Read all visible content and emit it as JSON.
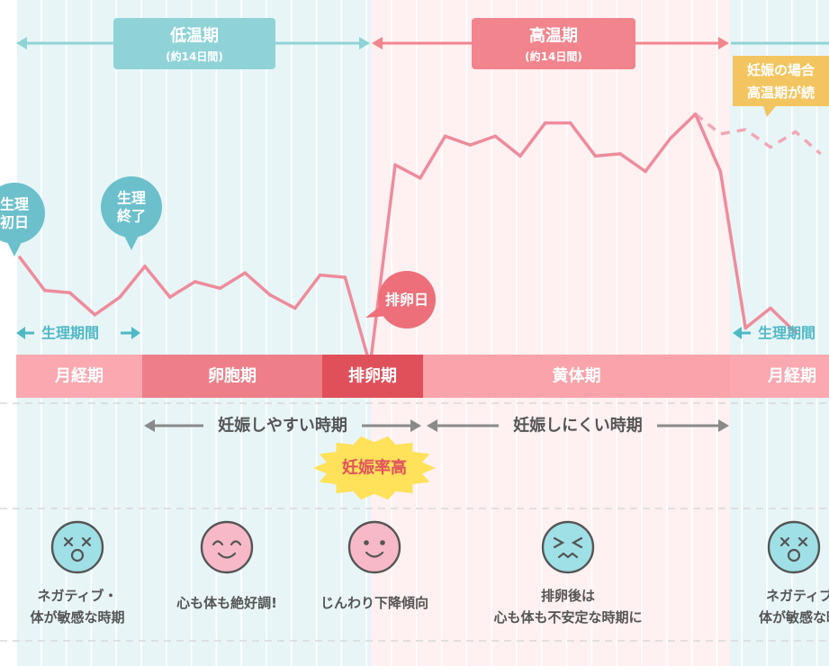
{
  "colors": {
    "low_bg": "#e7f5f7",
    "high_bg": "#fff0f1",
    "stripe": "#ffffff",
    "teal": "#8fd3d7",
    "teal_dark": "#5fb9c3",
    "teal_label": "#4fb8c5",
    "pink": "#f2848e",
    "line": "#ee8c9c",
    "line_cont": "#f0a8b5",
    "gray_arrow": "#8a8a8a",
    "text_dark": "#555555",
    "phase_menstrual": "#fba8b0",
    "phase_follicular": "#ee7f88",
    "phase_ovulation": "#e0505a",
    "phase_luteal": "#fba3ab",
    "callout_ovulation": "#ec6f79",
    "callout_teal": "#6cc0cc",
    "callout_yellow": "#f3c560",
    "burst": "#ffe15a",
    "burst_text": "#e2545d",
    "face_teal": "#9fe0e6",
    "face_pink": "#f7b9c8"
  },
  "periods": {
    "low_label": "低温期",
    "low_sub": "(約14日間)",
    "high_label": "高温期",
    "high_sub": "(約14日間)",
    "pregnancy_note_line1": "妊娠の場合",
    "pregnancy_note_line2": "高温期が続"
  },
  "markers": {
    "menses_start_line1": "生理",
    "menses_start_line2": "初日",
    "menses_end_line1": "生理",
    "menses_end_line2": "終了",
    "ovulation_day": "排卵日",
    "menstrual_period_left": "生理期間",
    "menstrual_period_right": "生理期間"
  },
  "phases": [
    {
      "label": "月経期",
      "key": "menstrual"
    },
    {
      "label": "卵胞期",
      "key": "follicular"
    },
    {
      "label": "排卵期",
      "key": "ovulation"
    },
    {
      "label": "黄体期",
      "key": "luteal"
    },
    {
      "label": "月経期",
      "key": "menstrual"
    }
  ],
  "fertility": {
    "easy": "妊娠しやすい時期",
    "hard": "妊娠しにくい時期",
    "burst": "妊娠率高"
  },
  "moods": [
    {
      "icon": "dizzy-face-icon",
      "line1": "ネガティブ・",
      "line2": "体が敏感な時期"
    },
    {
      "icon": "happy-face-icon",
      "line1": "心も体も絶好調!",
      "line2": ""
    },
    {
      "icon": "smile-face-icon",
      "line1": "じんわり下降傾向",
      "line2": ""
    },
    {
      "icon": "anxious-face-icon",
      "line1": "排卵後は",
      "line2": "心も体も不安定な時期に"
    },
    {
      "icon": "dizzy-face-icon",
      "line1": "ネガティブ",
      "line2": "体が敏感な時"
    }
  ],
  "chart_data": {
    "type": "line",
    "series": [
      {
        "style": "solid",
        "x": [
          1,
          2,
          3,
          4,
          5,
          6,
          7,
          8,
          9,
          10,
          11,
          12,
          13,
          14,
          15,
          16,
          17,
          18,
          19,
          20,
          21,
          22,
          23,
          24,
          25,
          26,
          27,
          28,
          29,
          30,
          31,
          32
        ],
        "values": [
          31,
          16,
          15,
          5,
          13,
          27,
          13,
          20,
          17,
          24,
          14,
          8,
          23,
          22,
          -18,
          73,
          67,
          86,
          82,
          86,
          77,
          92,
          92,
          77,
          78,
          70,
          85,
          96,
          70,
          -1,
          8,
          -3
        ]
      },
      {
        "style": "dashed",
        "x": [
          28,
          29,
          30,
          31,
          32,
          33
        ],
        "values": [
          96,
          87,
          89,
          81,
          88,
          78
        ]
      }
    ],
    "grid": "vertical"
  }
}
